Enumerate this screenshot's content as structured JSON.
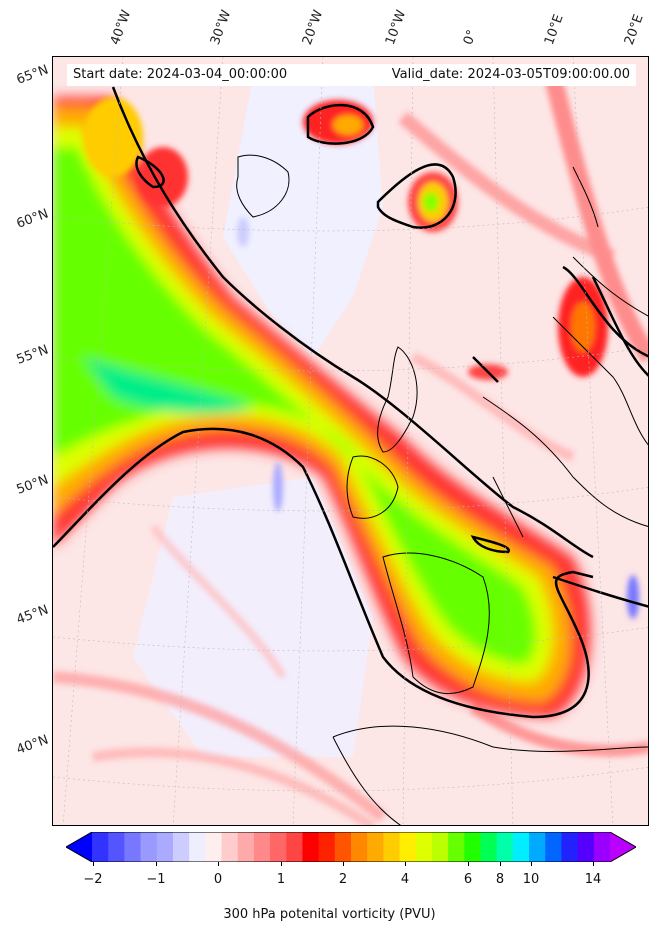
{
  "map": {
    "variable": "300 hPa potenital vorticity (PVU)",
    "start_date_text": "Start date: 2024-03-04_00:00:00",
    "valid_date_text": "Valid_date: 2024-03-05T09:00:00.00",
    "longitude_labels": [
      "40°W",
      "30°W",
      "20°W",
      "10°W",
      "0°",
      "10°E",
      "20°E"
    ],
    "latitude_labels": [
      "65°N",
      "60°N",
      "55°N",
      "50°N",
      "45°N",
      "40°N"
    ],
    "contour_level_pvu": 2,
    "contour_color": "#000000"
  },
  "colorbar": {
    "tick_labels": [
      "−2",
      "−1",
      "0",
      "1",
      "2",
      "4",
      "6",
      "8",
      "10",
      "14"
    ],
    "colors": [
      "#0000ff",
      "#3333ff",
      "#5555ff",
      "#7777ff",
      "#9999ff",
      "#aaaaff",
      "#ccccff",
      "#eeeeff",
      "#ffeeee",
      "#ffcccc",
      "#ffaaaa",
      "#ff8888",
      "#ff6666",
      "#ff4444",
      "#ff0000",
      "#ff2200",
      "#ff5500",
      "#ff8800",
      "#ffaa00",
      "#ffcc00",
      "#ffee00",
      "#ddff00",
      "#bbff00",
      "#66ff00",
      "#22ff00",
      "#00ff55",
      "#00ffaa",
      "#00eeff",
      "#00aaff",
      "#0066ff",
      "#2222ff",
      "#5500ff",
      "#9900ff",
      "#bb00ff"
    ]
  }
}
